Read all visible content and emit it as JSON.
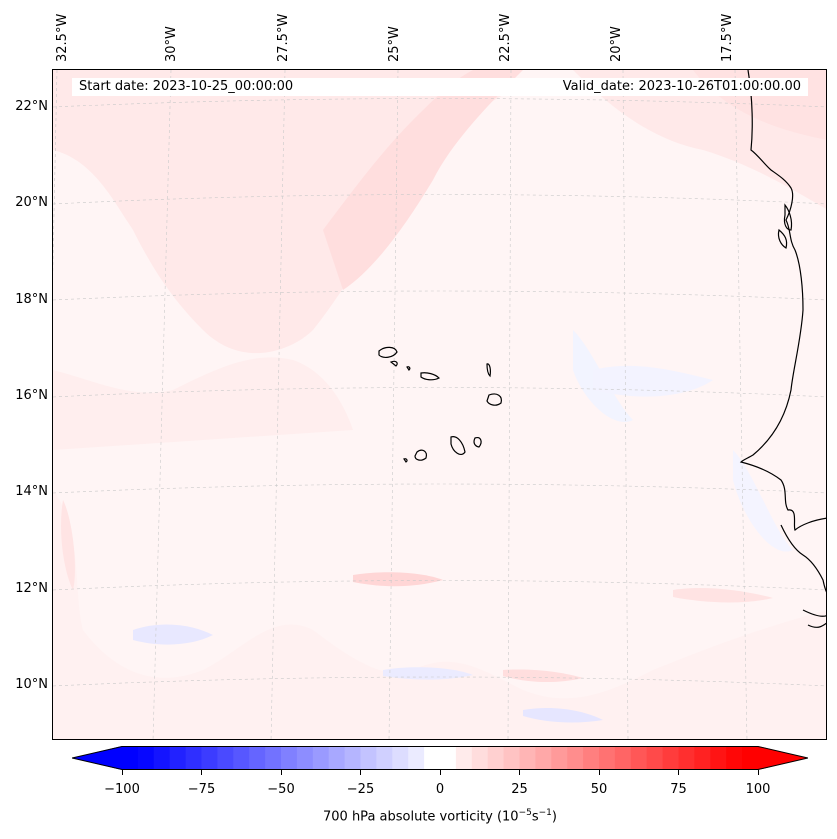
{
  "header": {
    "start_date": "Start date: 2023-10-25_00:00:00",
    "valid_date": "Valid_date: 2023-10-26T01:00:00.00"
  },
  "longitude_labels": [
    "32.5°W",
    "30°W",
    "27.5°W",
    "25°W",
    "22.5°W",
    "20°W",
    "17.5°W"
  ],
  "latitude_labels": [
    "22°N",
    "20°N",
    "18°N",
    "16°N",
    "14°N",
    "12°N",
    "10°N"
  ],
  "colorbar": {
    "label_prefix": "700 hPa absolute vorticity (10",
    "label_exp1": "−5",
    "label_mid": "s",
    "label_exp2": "−1",
    "label_suffix": ")",
    "ticks": [
      "−100",
      "−75",
      "−50",
      "−25",
      "0",
      "25",
      "50",
      "75",
      "100"
    ],
    "min": -100,
    "max": 100,
    "colors": {
      "negative": "#0000ff",
      "zero": "#ffffff",
      "positive": "#ff0000"
    }
  },
  "map": {
    "extent": {
      "lon_min": -33,
      "lon_max": -15.5,
      "lat_min": 9,
      "lat_max": 23
    },
    "projection": "lambert-conformal",
    "gridlines": true,
    "coastline_color": "#000000"
  }
}
